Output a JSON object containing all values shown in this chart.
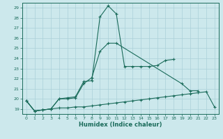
{
  "xlabel": "Humidex (Indice chaleur)",
  "background_color": "#cce8ec",
  "grid_color": "#aad0d8",
  "line_color": "#1a6b5a",
  "xlim": [
    -0.5,
    23.5
  ],
  "ylim": [
    18.5,
    29.5
  ],
  "xticks": [
    0,
    1,
    2,
    3,
    4,
    5,
    6,
    7,
    8,
    9,
    10,
    11,
    12,
    13,
    14,
    15,
    16,
    17,
    18,
    19,
    20,
    21,
    22,
    23
  ],
  "yticks": [
    19,
    20,
    21,
    22,
    23,
    24,
    25,
    26,
    27,
    28,
    29
  ],
  "series": [
    {
      "x": [
        0,
        1,
        2,
        3,
        4,
        5,
        6,
        7,
        8,
        9,
        10,
        11,
        12,
        13,
        14,
        15,
        16,
        17,
        18,
        19,
        20,
        21,
        22,
        23
      ],
      "y": [
        19.8,
        18.8,
        18.9,
        19.0,
        19.1,
        19.1,
        19.2,
        19.2,
        19.3,
        19.4,
        19.5,
        19.6,
        19.7,
        19.8,
        19.9,
        20.0,
        20.1,
        20.2,
        20.3,
        20.4,
        20.5,
        20.6,
        20.7,
        19.2
      ]
    },
    {
      "x": [
        0,
        1,
        2,
        3,
        4,
        5,
        6,
        7,
        8,
        9,
        10,
        11,
        19,
        20,
        21
      ],
      "y": [
        19.8,
        18.8,
        18.9,
        19.0,
        20.0,
        20.0,
        20.1,
        21.5,
        22.1,
        24.7,
        25.5,
        25.5,
        21.5,
        20.8,
        20.8
      ]
    },
    {
      "x": [
        0,
        1,
        2,
        3,
        4,
        5,
        6,
        7,
        8,
        9,
        10,
        11,
        12,
        13,
        14,
        15,
        16,
        17,
        18
      ],
      "y": [
        19.8,
        18.8,
        18.9,
        19.0,
        20.0,
        20.1,
        20.2,
        21.7,
        21.8,
        28.1,
        29.2,
        28.4,
        23.2,
        23.2,
        23.2,
        23.2,
        23.3,
        23.8,
        23.9
      ]
    }
  ]
}
